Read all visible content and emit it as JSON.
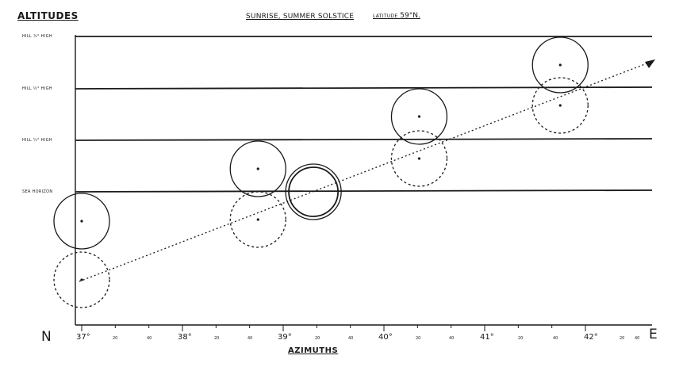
{
  "header": {
    "y_axis_title": "ALTITUDES",
    "main_title": "SUNRISE, SUMMER SOLSTICE",
    "latitude_label": "LATITUDE",
    "latitude_value": "59°N."
  },
  "altitude_levels": [
    {
      "label": "HILL ¾° HIGH"
    },
    {
      "label": "HILL ½° HIGH"
    },
    {
      "label": "HILL ¼° HIGH"
    },
    {
      "label": "SEA HORIZON"
    }
  ],
  "x_axis": {
    "title": "AZIMUTHS",
    "left_direction": "N",
    "right_direction": "E",
    "major_ticks": [
      "37°",
      "38°",
      "39°",
      "40°",
      "41°",
      "42°"
    ],
    "minor_ticks": [
      "20",
      "40",
      "20",
      "40",
      "20",
      "40",
      "20",
      "40",
      "20",
      "40",
      "20",
      "40"
    ]
  },
  "sun_discs": [
    {
      "azimuth": 37.0,
      "style": "solid"
    },
    {
      "azimuth": 37.0,
      "style": "dotted"
    },
    {
      "azimuth": 38.75,
      "style": "solid"
    },
    {
      "azimuth": 38.75,
      "style": "dotted"
    },
    {
      "azimuth": 39.3,
      "style": "double"
    },
    {
      "azimuth": 40.35,
      "style": "solid"
    },
    {
      "azimuth": 40.35,
      "style": "dotted"
    },
    {
      "azimuth": 41.75,
      "style": "solid"
    },
    {
      "azimuth": 41.75,
      "style": "dotted"
    }
  ],
  "colors": {
    "ink": "#1a1a1a",
    "paper": "#ffffff"
  }
}
